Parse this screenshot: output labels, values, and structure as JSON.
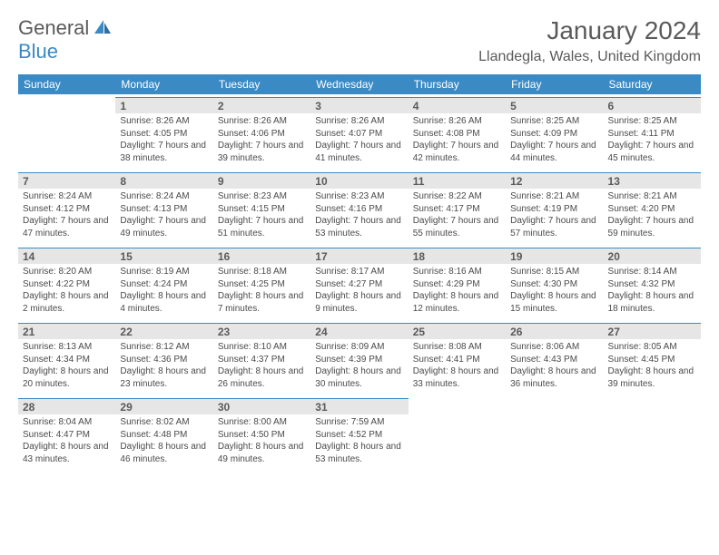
{
  "logo": {
    "text1": "General",
    "text2": "Blue"
  },
  "title": "January 2024",
  "location": "Llandegla, Wales, United Kingdom",
  "colors": {
    "header_bg": "#3b8ac4",
    "header_text": "#ffffff",
    "daynum_bg": "#e6e6e6",
    "daynum_border": "#3b8ac4",
    "text": "#5a5a5a",
    "body_text": "#4a4a4a",
    "background": "#ffffff"
  },
  "weekdays": [
    "Sunday",
    "Monday",
    "Tuesday",
    "Wednesday",
    "Thursday",
    "Friday",
    "Saturday"
  ],
  "weeks": [
    [
      {
        "day": "",
        "sunrise": "",
        "sunset": "",
        "daylight": ""
      },
      {
        "day": "1",
        "sunrise": "Sunrise: 8:26 AM",
        "sunset": "Sunset: 4:05 PM",
        "daylight": "Daylight: 7 hours and 38 minutes."
      },
      {
        "day": "2",
        "sunrise": "Sunrise: 8:26 AM",
        "sunset": "Sunset: 4:06 PM",
        "daylight": "Daylight: 7 hours and 39 minutes."
      },
      {
        "day": "3",
        "sunrise": "Sunrise: 8:26 AM",
        "sunset": "Sunset: 4:07 PM",
        "daylight": "Daylight: 7 hours and 41 minutes."
      },
      {
        "day": "4",
        "sunrise": "Sunrise: 8:26 AM",
        "sunset": "Sunset: 4:08 PM",
        "daylight": "Daylight: 7 hours and 42 minutes."
      },
      {
        "day": "5",
        "sunrise": "Sunrise: 8:25 AM",
        "sunset": "Sunset: 4:09 PM",
        "daylight": "Daylight: 7 hours and 44 minutes."
      },
      {
        "day": "6",
        "sunrise": "Sunrise: 8:25 AM",
        "sunset": "Sunset: 4:11 PM",
        "daylight": "Daylight: 7 hours and 45 minutes."
      }
    ],
    [
      {
        "day": "7",
        "sunrise": "Sunrise: 8:24 AM",
        "sunset": "Sunset: 4:12 PM",
        "daylight": "Daylight: 7 hours and 47 minutes."
      },
      {
        "day": "8",
        "sunrise": "Sunrise: 8:24 AM",
        "sunset": "Sunset: 4:13 PM",
        "daylight": "Daylight: 7 hours and 49 minutes."
      },
      {
        "day": "9",
        "sunrise": "Sunrise: 8:23 AM",
        "sunset": "Sunset: 4:15 PM",
        "daylight": "Daylight: 7 hours and 51 minutes."
      },
      {
        "day": "10",
        "sunrise": "Sunrise: 8:23 AM",
        "sunset": "Sunset: 4:16 PM",
        "daylight": "Daylight: 7 hours and 53 minutes."
      },
      {
        "day": "11",
        "sunrise": "Sunrise: 8:22 AM",
        "sunset": "Sunset: 4:17 PM",
        "daylight": "Daylight: 7 hours and 55 minutes."
      },
      {
        "day": "12",
        "sunrise": "Sunrise: 8:21 AM",
        "sunset": "Sunset: 4:19 PM",
        "daylight": "Daylight: 7 hours and 57 minutes."
      },
      {
        "day": "13",
        "sunrise": "Sunrise: 8:21 AM",
        "sunset": "Sunset: 4:20 PM",
        "daylight": "Daylight: 7 hours and 59 minutes."
      }
    ],
    [
      {
        "day": "14",
        "sunrise": "Sunrise: 8:20 AM",
        "sunset": "Sunset: 4:22 PM",
        "daylight": "Daylight: 8 hours and 2 minutes."
      },
      {
        "day": "15",
        "sunrise": "Sunrise: 8:19 AM",
        "sunset": "Sunset: 4:24 PM",
        "daylight": "Daylight: 8 hours and 4 minutes."
      },
      {
        "day": "16",
        "sunrise": "Sunrise: 8:18 AM",
        "sunset": "Sunset: 4:25 PM",
        "daylight": "Daylight: 8 hours and 7 minutes."
      },
      {
        "day": "17",
        "sunrise": "Sunrise: 8:17 AM",
        "sunset": "Sunset: 4:27 PM",
        "daylight": "Daylight: 8 hours and 9 minutes."
      },
      {
        "day": "18",
        "sunrise": "Sunrise: 8:16 AM",
        "sunset": "Sunset: 4:29 PM",
        "daylight": "Daylight: 8 hours and 12 minutes."
      },
      {
        "day": "19",
        "sunrise": "Sunrise: 8:15 AM",
        "sunset": "Sunset: 4:30 PM",
        "daylight": "Daylight: 8 hours and 15 minutes."
      },
      {
        "day": "20",
        "sunrise": "Sunrise: 8:14 AM",
        "sunset": "Sunset: 4:32 PM",
        "daylight": "Daylight: 8 hours and 18 minutes."
      }
    ],
    [
      {
        "day": "21",
        "sunrise": "Sunrise: 8:13 AM",
        "sunset": "Sunset: 4:34 PM",
        "daylight": "Daylight: 8 hours and 20 minutes."
      },
      {
        "day": "22",
        "sunrise": "Sunrise: 8:12 AM",
        "sunset": "Sunset: 4:36 PM",
        "daylight": "Daylight: 8 hours and 23 minutes."
      },
      {
        "day": "23",
        "sunrise": "Sunrise: 8:10 AM",
        "sunset": "Sunset: 4:37 PM",
        "daylight": "Daylight: 8 hours and 26 minutes."
      },
      {
        "day": "24",
        "sunrise": "Sunrise: 8:09 AM",
        "sunset": "Sunset: 4:39 PM",
        "daylight": "Daylight: 8 hours and 30 minutes."
      },
      {
        "day": "25",
        "sunrise": "Sunrise: 8:08 AM",
        "sunset": "Sunset: 4:41 PM",
        "daylight": "Daylight: 8 hours and 33 minutes."
      },
      {
        "day": "26",
        "sunrise": "Sunrise: 8:06 AM",
        "sunset": "Sunset: 4:43 PM",
        "daylight": "Daylight: 8 hours and 36 minutes."
      },
      {
        "day": "27",
        "sunrise": "Sunrise: 8:05 AM",
        "sunset": "Sunset: 4:45 PM",
        "daylight": "Daylight: 8 hours and 39 minutes."
      }
    ],
    [
      {
        "day": "28",
        "sunrise": "Sunrise: 8:04 AM",
        "sunset": "Sunset: 4:47 PM",
        "daylight": "Daylight: 8 hours and 43 minutes."
      },
      {
        "day": "29",
        "sunrise": "Sunrise: 8:02 AM",
        "sunset": "Sunset: 4:48 PM",
        "daylight": "Daylight: 8 hours and 46 minutes."
      },
      {
        "day": "30",
        "sunrise": "Sunrise: 8:00 AM",
        "sunset": "Sunset: 4:50 PM",
        "daylight": "Daylight: 8 hours and 49 minutes."
      },
      {
        "day": "31",
        "sunrise": "Sunrise: 7:59 AM",
        "sunset": "Sunset: 4:52 PM",
        "daylight": "Daylight: 8 hours and 53 minutes."
      },
      {
        "day": "",
        "sunrise": "",
        "sunset": "",
        "daylight": ""
      },
      {
        "day": "",
        "sunrise": "",
        "sunset": "",
        "daylight": ""
      },
      {
        "day": "",
        "sunrise": "",
        "sunset": "",
        "daylight": ""
      }
    ]
  ]
}
